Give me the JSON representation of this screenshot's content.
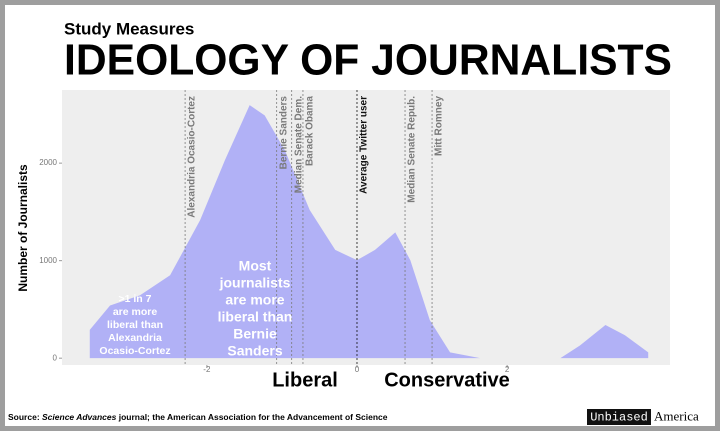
{
  "chart_data": {
    "type": "area",
    "supertitle": "Study Measures",
    "title": "IDEOLOGY OF JOURNALISTS",
    "y_label": "Number of Journalists",
    "x_left_label": "Liberal",
    "x_right_label": "Conservative",
    "color": "#b1b1f6",
    "x": [
      -3.56,
      -3.29,
      -2.89,
      -2.49,
      -2.09,
      -1.76,
      -1.43,
      -1.23,
      -0.96,
      -0.63,
      -0.29,
      0,
      0.24,
      0.51,
      0.71,
      0.97,
      1.24,
      1.64,
      2.71,
      2.97,
      3.31,
      3.57,
      3.88
    ],
    "values": [
      290,
      540,
      645,
      850,
      1415,
      2030,
      2595,
      2490,
      2130,
      1520,
      1110,
      1005,
      1110,
      1290,
      1005,
      390,
      60,
      0,
      0,
      130,
      340,
      235,
      60
    ],
    "xlim": [
      -3.93,
      4.17
    ],
    "ylim": [
      -70,
      2750
    ],
    "xticks": [
      -2,
      0,
      2
    ],
    "yticks": [
      0,
      1000,
      2000
    ],
    "references": [
      {
        "label": "Alexandria Ocasio-Cortez",
        "x": -2.29,
        "color": "#7a7a7a"
      },
      {
        "label": "Bernie Sanders",
        "x": -1.07,
        "color": "#7a7a7a"
      },
      {
        "label": "Median Senate Dem.",
        "x": -0.87,
        "color": "#7a7a7a"
      },
      {
        "label": "Barack Obama",
        "x": -0.72,
        "color": "#7a7a7a"
      },
      {
        "label": "Average Twitter user",
        "x": 0,
        "color": "#111111"
      },
      {
        "label": "Median Senate Repub.",
        "x": 0.64,
        "color": "#7a7a7a"
      },
      {
        "label": "Mitt Romney",
        "x": 1.0,
        "color": "#7a7a7a"
      }
    ],
    "annotations": [
      [
        ">1 in 7",
        "are more",
        "liberal than",
        "Alexandria",
        "Ocasio-Cortez"
      ],
      [
        "Most",
        "journalists",
        "are more",
        "liberal than",
        "Bernie",
        "Sanders"
      ]
    ],
    "source": [
      "Source: ",
      "Science Advances",
      " journal; the American Association for the Advancement of Science"
    ],
    "brand": [
      "Unbiased",
      "America"
    ]
  }
}
